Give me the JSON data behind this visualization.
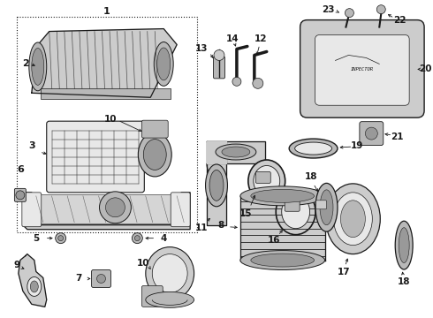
{
  "bg_color": "#ffffff",
  "line_color": "#1a1a1a",
  "fig_width": 4.9,
  "fig_height": 3.6,
  "dpi": 100,
  "gray_fill": "#cccccc",
  "gray_dark": "#999999",
  "gray_light": "#e8e8e8",
  "gray_med": "#b8b8b8"
}
